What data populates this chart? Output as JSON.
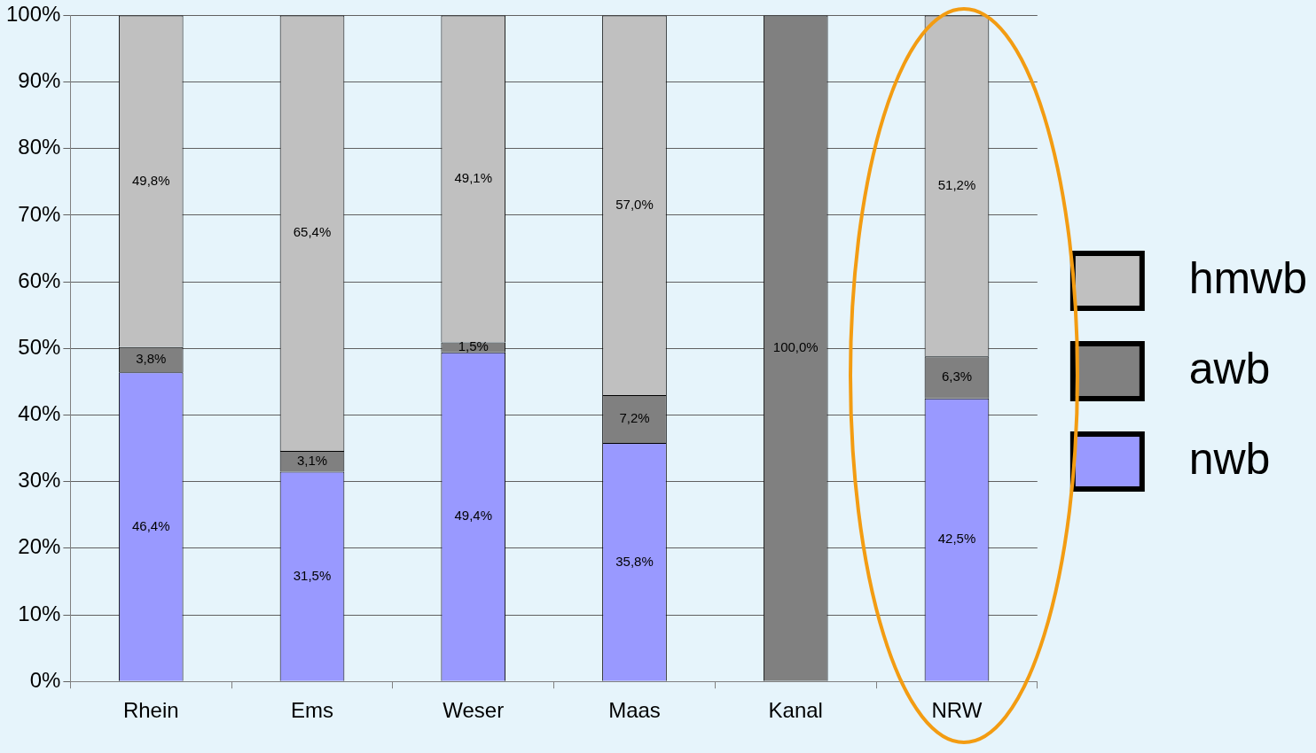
{
  "chart_data": {
    "type": "bar",
    "stacked": true,
    "categories": [
      "Rhein",
      "Ems",
      "Weser",
      "Maas",
      "Kanal",
      "NRW"
    ],
    "series": [
      {
        "name": "nwb",
        "color": "#9999ff",
        "values": [
          46.4,
          31.5,
          49.4,
          35.8,
          null,
          42.5
        ],
        "value_labels": [
          "46,4%",
          "31,5%",
          "49,4%",
          "35,8%",
          null,
          "42,5%"
        ]
      },
      {
        "name": "awb",
        "color": "#808080",
        "values": [
          3.8,
          3.1,
          1.5,
          7.2,
          100,
          6.3
        ],
        "value_labels": [
          "3,8%",
          "3,1%",
          "1,5%",
          "7,2%",
          "100,0%",
          "6,3%"
        ]
      },
      {
        "name": "hmwb",
        "color": "#c0c0c0",
        "values": [
          49.8,
          65.4,
          49.1,
          57.0,
          null,
          51.2
        ],
        "value_labels": [
          "49,8%",
          "65,4%",
          "49,1%",
          "57,0%",
          null,
          "51,2%"
        ]
      }
    ],
    "ylim": [
      0,
      100
    ],
    "yticks": [
      {
        "value": 0,
        "label": "0%"
      },
      {
        "value": 10,
        "label": "10%"
      },
      {
        "value": 20,
        "label": "20%"
      },
      {
        "value": 30,
        "label": "30%"
      },
      {
        "value": 40,
        "label": "40%"
      },
      {
        "value": 50,
        "label": "50%"
      },
      {
        "value": 60,
        "label": "60%"
      },
      {
        "value": 70,
        "label": "70%"
      },
      {
        "value": 80,
        "label": "80%"
      },
      {
        "value": 90,
        "label": "90%"
      },
      {
        "value": 100,
        "label": "100%"
      }
    ],
    "grid": "y",
    "legend": "right"
  }
}
